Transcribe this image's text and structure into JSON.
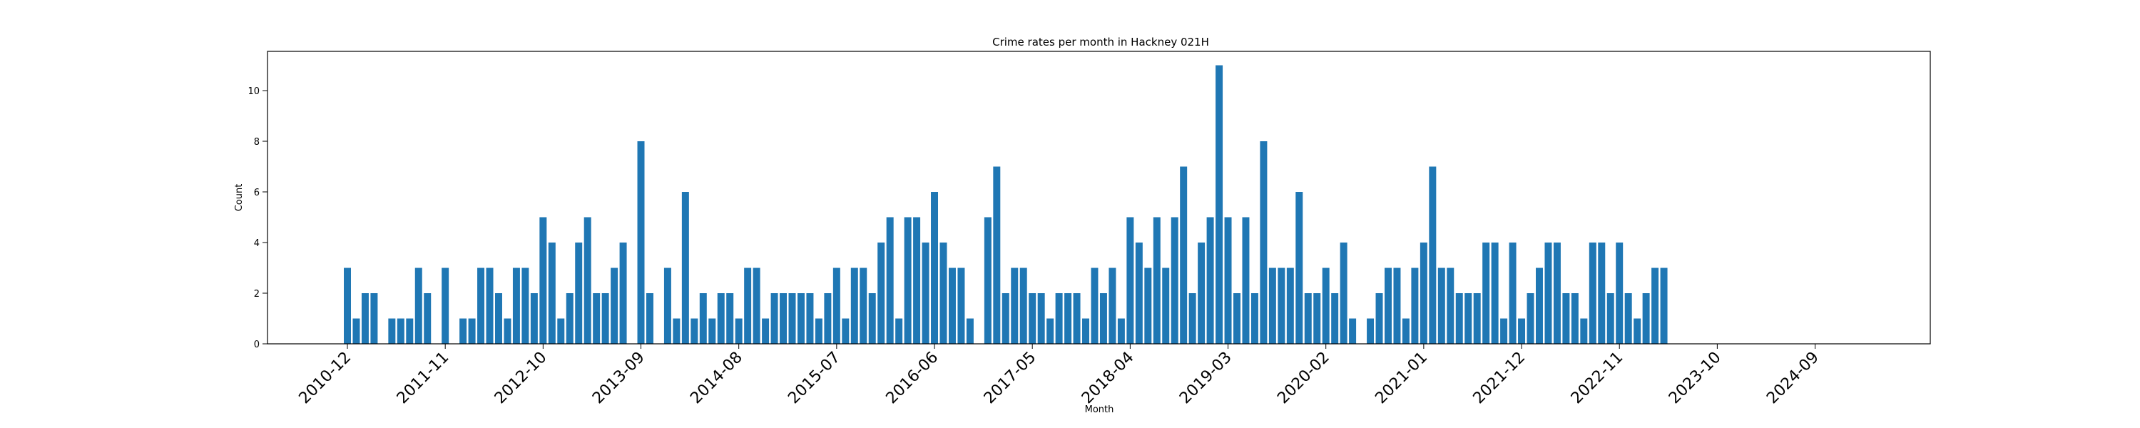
{
  "chart_data": {
    "type": "bar",
    "title": "Crime rates per month in Hackney 021H",
    "xlabel": "Month",
    "ylabel": "Count",
    "ylim": [
      0,
      11.55
    ],
    "yticks": [
      0,
      2,
      4,
      6,
      8,
      10
    ],
    "xticks": [
      "2010-12",
      "2011-11",
      "2012-10",
      "2013-09",
      "2014-08",
      "2015-07",
      "2016-06",
      "2017-05",
      "2018-04",
      "2019-03",
      "2020-02",
      "2021-01",
      "2021-12",
      "2022-11",
      "2023-10",
      "2024-09"
    ],
    "grid": false,
    "color": "#1f77b4",
    "categories": [
      "2010-12",
      "2011-01",
      "2011-02",
      "2011-03",
      "2011-04",
      "2011-05",
      "2011-06",
      "2011-07",
      "2011-08",
      "2011-09",
      "2011-10",
      "2011-11",
      "2011-12",
      "2012-01",
      "2012-02",
      "2012-03",
      "2012-04",
      "2012-05",
      "2012-06",
      "2012-07",
      "2012-08",
      "2012-09",
      "2012-10",
      "2012-11",
      "2012-12",
      "2013-01",
      "2013-02",
      "2013-03",
      "2013-04",
      "2013-05",
      "2013-06",
      "2013-07",
      "2013-08",
      "2013-09",
      "2013-10",
      "2013-11",
      "2013-12",
      "2014-01",
      "2014-02",
      "2014-03",
      "2014-04",
      "2014-05",
      "2014-06",
      "2014-07",
      "2014-08",
      "2014-09",
      "2014-10",
      "2014-11",
      "2014-12",
      "2015-01",
      "2015-02",
      "2015-03",
      "2015-04",
      "2015-05",
      "2015-06",
      "2015-07",
      "2015-08",
      "2015-09",
      "2015-10",
      "2015-11",
      "2015-12",
      "2016-01",
      "2016-02",
      "2016-03",
      "2016-04",
      "2016-05",
      "2016-06",
      "2016-07",
      "2016-08",
      "2016-09",
      "2016-10",
      "2016-11",
      "2016-12",
      "2017-01",
      "2017-02",
      "2017-03",
      "2017-04",
      "2017-05",
      "2017-06",
      "2017-07",
      "2017-08",
      "2017-09",
      "2017-10",
      "2017-11",
      "2017-12",
      "2018-01",
      "2018-02",
      "2018-03",
      "2018-04",
      "2018-05",
      "2018-06",
      "2018-07",
      "2018-08",
      "2018-09",
      "2018-10",
      "2018-11",
      "2018-12",
      "2019-01",
      "2019-02",
      "2019-03",
      "2019-04",
      "2019-05",
      "2019-06",
      "2019-07",
      "2019-08",
      "2019-09",
      "2019-10",
      "2019-11",
      "2019-12",
      "2020-01",
      "2020-02",
      "2020-03",
      "2020-04",
      "2020-05",
      "2020-06",
      "2020-07",
      "2020-08",
      "2020-09",
      "2020-10",
      "2020-11",
      "2020-12",
      "2021-01",
      "2021-02",
      "2021-03",
      "2021-04",
      "2021-05",
      "2021-06",
      "2021-07",
      "2021-08",
      "2021-09",
      "2021-10",
      "2021-11",
      "2021-12",
      "2022-01",
      "2022-02",
      "2022-03",
      "2022-04",
      "2022-05",
      "2022-06",
      "2022-07",
      "2022-08",
      "2022-09",
      "2022-10",
      "2022-11",
      "2022-12",
      "2023-01",
      "2023-02",
      "2023-03",
      "2023-04"
    ],
    "values": [
      3,
      1,
      2,
      2,
      0,
      1,
      1,
      1,
      3,
      2,
      0,
      3,
      0,
      1,
      1,
      3,
      3,
      2,
      1,
      3,
      3,
      2,
      5,
      4,
      1,
      2,
      4,
      5,
      2,
      2,
      3,
      4,
      0,
      8,
      2,
      0,
      3,
      1,
      6,
      1,
      2,
      1,
      2,
      2,
      1,
      3,
      3,
      1,
      2,
      2,
      2,
      2,
      2,
      1,
      2,
      3,
      1,
      3,
      3,
      2,
      4,
      5,
      1,
      5,
      5,
      4,
      6,
      4,
      3,
      3,
      1,
      0,
      5,
      7,
      2,
      3,
      3,
      2,
      2,
      1,
      2,
      2,
      2,
      1,
      3,
      2,
      3,
      1,
      5,
      4,
      3,
      5,
      3,
      5,
      7,
      2,
      4,
      5,
      11,
      5,
      2,
      5,
      2,
      8,
      3,
      3,
      3,
      6,
      2,
      2,
      3,
      2,
      4,
      1,
      0,
      1,
      2,
      3,
      3,
      1,
      3,
      4,
      7,
      3,
      3,
      2,
      2,
      2,
      4,
      4,
      1,
      4,
      1,
      2,
      3,
      4,
      4,
      2,
      2,
      1,
      4,
      4,
      2,
      4,
      2,
      1,
      2,
      3,
      3
    ]
  }
}
